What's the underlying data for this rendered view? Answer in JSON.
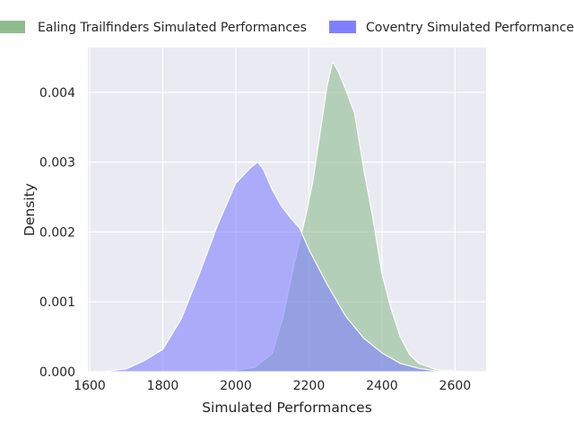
{
  "chart_data": {
    "type": "area",
    "title": "",
    "xlabel": "Simulated Performances",
    "ylabel": "Density",
    "xlim": [
      1595,
      2685
    ],
    "ylim": [
      0,
      0.00464
    ],
    "x_ticks": [
      1600,
      1800,
      2000,
      2200,
      2400,
      2600
    ],
    "x_tick_labels": [
      "1600",
      "1800",
      "2000",
      "2200",
      "2400",
      "2600"
    ],
    "y_ticks": [
      0,
      0.001,
      0.002,
      0.003,
      0.004
    ],
    "y_tick_labels": [
      "0.000",
      "0.001",
      "0.002",
      "0.003",
      "0.004"
    ],
    "grid": true,
    "legend_position": "top",
    "colors": {
      "background": "#eaeaf2",
      "grid": "#ffffff",
      "ealing": "#8fbc8f",
      "coventry": "#8080ff",
      "edge": "#ffffff"
    },
    "series": [
      {
        "name": "Ealing Trailfinders Simulated Performances",
        "color": "#8fbc8f",
        "x": [
          1650,
          1900,
          2000,
          2050,
          2100,
          2130,
          2160,
          2190,
          2210,
          2230,
          2250,
          2265,
          2280,
          2300,
          2325,
          2350,
          2375,
          2400,
          2425,
          2450,
          2475,
          2500,
          2550,
          2600,
          2640
        ],
        "y": [
          0,
          1e-05,
          2e-05,
          6e-05,
          0.00026,
          0.0008,
          0.00155,
          0.0022,
          0.0027,
          0.0034,
          0.0041,
          0.00444,
          0.0043,
          0.00405,
          0.0037,
          0.0029,
          0.0022,
          0.0014,
          0.0009,
          0.0005,
          0.00025,
          0.00012,
          3e-05,
          1e-05,
          0
        ]
      },
      {
        "name": "Coventry Simulated Performances",
        "color": "#8080ff",
        "x": [
          1630,
          1700,
          1750,
          1800,
          1850,
          1900,
          1950,
          2000,
          2040,
          2060,
          2075,
          2100,
          2125,
          2150,
          2175,
          2200,
          2250,
          2300,
          2350,
          2400,
          2450,
          2500,
          2550,
          2600
        ],
        "y": [
          0,
          4e-05,
          0.00016,
          0.00032,
          0.00075,
          0.0014,
          0.0021,
          0.0027,
          0.00292,
          0.003,
          0.0029,
          0.0026,
          0.00237,
          0.0022,
          0.00205,
          0.00175,
          0.00125,
          0.0008,
          0.00048,
          0.00027,
          0.00012,
          5e-05,
          1e-05,
          0
        ]
      }
    ]
  }
}
